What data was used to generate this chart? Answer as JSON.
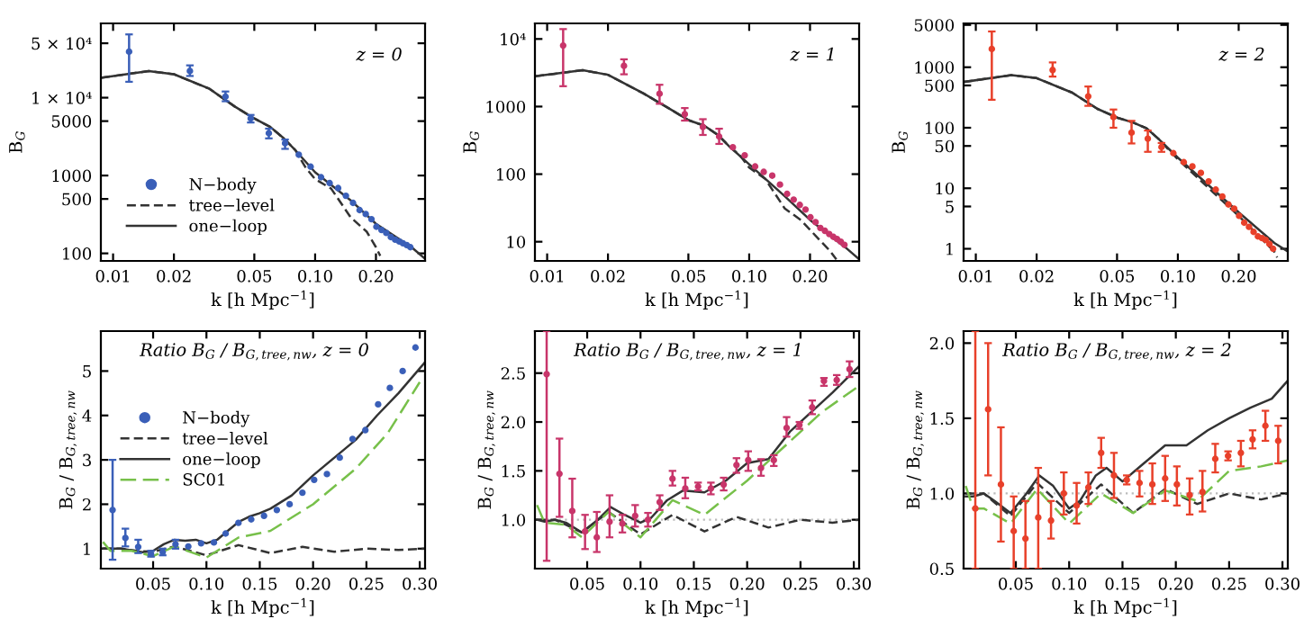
{
  "chart_data": [
    {
      "type": "line",
      "xlabel": "k [h Mpc$^{−1}$]",
      "ylabel": "B$_{G}$",
      "log": "xy",
      "xlim": [
        0.0087,
        0.35
      ],
      "ylim": [
        80,
        90000
      ],
      "xticks": [
        0.01,
        0.02,
        0.05,
        {
          "value": 0.1,
          "label": "0.10"
        },
        {
          "value": 0.2,
          "label": "0.20"
        }
      ],
      "yticks": [
        100,
        500,
        1000,
        5000,
        {
          "value": 10000,
          "label": "1 × 10⁴"
        },
        {
          "value": 50000,
          "label": "5 × 10⁴"
        }
      ],
      "annotations": [
        "z = 0"
      ],
      "legend": "bottom left",
      "series": [
        {
          "name": "N−body",
          "type": "scatter",
          "marker": "circle",
          "color": "#3a5fb8",
          "x": [
            0.012,
            0.024,
            0.036,
            0.048,
            0.059,
            0.071,
            0.083,
            0.095,
            0.107,
            0.118,
            0.13,
            0.142,
            0.154,
            0.166,
            0.178,
            0.19,
            0.201,
            0.213,
            0.225,
            0.237,
            0.249,
            0.261,
            0.272,
            0.284,
            0.296
          ],
          "values": [
            39000,
            22000,
            10300,
            5400,
            3500,
            2600,
            1850,
            1300,
            950,
            800,
            690,
            550,
            445,
            360,
            320,
            275,
            220,
            200,
            183,
            162,
            150,
            142,
            135,
            128,
            120
          ],
          "errors": [
            [
              16000,
              65000
            ],
            [
              19000,
              26000
            ],
            [
              9000,
              12000
            ],
            [
              4800,
              6000
            ],
            [
              3000,
              4000
            ],
            [
              2200,
              2900
            ],
            null,
            null,
            null,
            null,
            null,
            null,
            null,
            null,
            null,
            null,
            null,
            null,
            null,
            null,
            null,
            null,
            null,
            null,
            null
          ]
        },
        {
          "name": "tree−level",
          "type": "line",
          "line_style": "dashed",
          "color": "#333333",
          "x": [
            0.0087,
            0.015,
            0.02,
            0.03,
            0.04,
            0.05,
            0.06,
            0.07,
            0.08,
            0.09,
            0.1,
            0.12,
            0.15,
            0.18,
            0.2,
            0.21
          ],
          "values": [
            18000,
            22000,
            20000,
            13000,
            7700,
            5400,
            4200,
            3000,
            2100,
            1250,
            900,
            680,
            290,
            190,
            120,
            93
          ]
        },
        {
          "name": "one−loop",
          "type": "line",
          "line_style": "solid",
          "color": "#333333",
          "x": [
            0.0087,
            0.015,
            0.02,
            0.03,
            0.04,
            0.05,
            0.06,
            0.07,
            0.08,
            0.1,
            0.15,
            0.2,
            0.3,
            0.35
          ],
          "values": [
            18000,
            22000,
            20000,
            13000,
            7700,
            5400,
            4200,
            3000,
            2100,
            1100,
            480,
            240,
            120,
            85
          ]
        }
      ]
    },
    {
      "type": "line",
      "xlabel": "k [h Mpc$^{−1}$]",
      "ylabel": "B$_{G}$",
      "log": "xy",
      "xlim": [
        0.0087,
        0.35
      ],
      "ylim": [
        5.2,
        17000
      ],
      "xticks": [
        0.01,
        0.02,
        0.05,
        {
          "value": 0.1,
          "label": "0.10"
        },
        {
          "value": 0.2,
          "label": "0.20"
        }
      ],
      "yticks": [
        10,
        100,
        1000,
        {
          "value": 10000,
          "label": "10⁴"
        }
      ],
      "annotations": [
        "z = 1"
      ],
      "series": [
        {
          "type": "scatter",
          "marker": "circle",
          "color": "#c8356a",
          "x": [
            0.012,
            0.024,
            0.036,
            0.048,
            0.059,
            0.071,
            0.083,
            0.095,
            0.107,
            0.118,
            0.13,
            0.142,
            0.154,
            0.166,
            0.178,
            0.19,
            0.201,
            0.213,
            0.225,
            0.237,
            0.249,
            0.261,
            0.272,
            0.284,
            0.296
          ],
          "values": [
            8000,
            4000,
            1550,
            770,
            500,
            360,
            250,
            190,
            130,
            108,
            95,
            70,
            51,
            42,
            35,
            30,
            23,
            19.5,
            16,
            14.5,
            13,
            11.8,
            11,
            10,
            9
          ],
          "errors": [
            [
              2000,
              14000
            ],
            [
              3000,
              5000
            ],
            [
              1100,
              2100
            ],
            [
              620,
              950
            ],
            [
              380,
              650
            ],
            [
              280,
              470
            ],
            null,
            null,
            null,
            null,
            null,
            null,
            null,
            null,
            null,
            null,
            null,
            null,
            null,
            null,
            null,
            null,
            null,
            null,
            null
          ]
        },
        {
          "type": "line",
          "line_style": "dashed",
          "color": "#333333",
          "x": [
            0.0087,
            0.015,
            0.02,
            0.03,
            0.04,
            0.05,
            0.06,
            0.07,
            0.08,
            0.09,
            0.1,
            0.12,
            0.15,
            0.18,
            0.2,
            0.25,
            0.27
          ],
          "values": [
            2800,
            3450,
            2950,
            1560,
            940,
            630,
            520,
            380,
            255,
            190,
            125,
            85,
            31,
            21,
            15,
            7.4,
            5.5
          ]
        },
        {
          "type": "line",
          "line_style": "solid",
          "color": "#333333",
          "x": [
            0.0087,
            0.015,
            0.02,
            0.03,
            0.04,
            0.05,
            0.06,
            0.07,
            0.08,
            0.1,
            0.15,
            0.2,
            0.3,
            0.35
          ],
          "values": [
            2800,
            3450,
            2950,
            1560,
            940,
            630,
            520,
            380,
            255,
            140,
            47,
            21,
            8.2,
            5.5
          ]
        }
      ]
    },
    {
      "type": "line",
      "xlabel": "k [h Mpc$^{−1}$]",
      "ylabel": "B$_{G}$",
      "log": "xy",
      "xlim": [
        0.0087,
        0.35
      ],
      "ylim": [
        0.63,
        5300
      ],
      "xticks": [
        0.01,
        0.02,
        0.05,
        {
          "value": 0.1,
          "label": "0.10"
        },
        {
          "value": 0.2,
          "label": "0.20"
        }
      ],
      "yticks": [
        1,
        5,
        10,
        50,
        100,
        500,
        1000,
        5000
      ],
      "annotations": [
        "z = 2"
      ],
      "series": [
        {
          "type": "scatter",
          "marker": "circle",
          "color": "#e8402a",
          "x": [
            0.012,
            0.024,
            0.036,
            0.048,
            0.059,
            0.071,
            0.083,
            0.095,
            0.107,
            0.118,
            0.13,
            0.142,
            0.154,
            0.166,
            0.178,
            0.19,
            0.201,
            0.213,
            0.225,
            0.237,
            0.249,
            0.261,
            0.272,
            0.284,
            0.296
          ],
          "values": [
            2000,
            900,
            330,
            150,
            83,
            66,
            48,
            38,
            27,
            23,
            18,
            13,
            9.5,
            7.3,
            5.4,
            4.6,
            3.5,
            2.7,
            2.3,
            1.9,
            1.6,
            1.5,
            1.4,
            1.2,
            1.0
          ],
          "errors": [
            [
              290,
              3900
            ],
            [
              700,
              1200
            ],
            [
              230,
              480
            ],
            [
              100,
              200
            ],
            [
              55,
              130
            ],
            [
              40,
              90
            ],
            [
              40,
              56
            ],
            null,
            null,
            null,
            null,
            null,
            null,
            null,
            null,
            null,
            null,
            null,
            null,
            null,
            null,
            null,
            null,
            null,
            null
          ]
        },
        {
          "type": "line",
          "line_style": "dashed",
          "color": "#333333",
          "x": [
            0.0087,
            0.015,
            0.02,
            0.03,
            0.04,
            0.05,
            0.06,
            0.07,
            0.08,
            0.1,
            0.15,
            0.2,
            0.3,
            0.31
          ],
          "values": [
            570,
            740,
            660,
            380,
            205,
            147,
            122,
            98,
            66,
            30,
            8.5,
            3.5,
            0.9,
            0.72
          ]
        },
        {
          "type": "line",
          "line_style": "solid",
          "color": "#333333",
          "x": [
            0.0087,
            0.015,
            0.02,
            0.03,
            0.04,
            0.05,
            0.06,
            0.07,
            0.08,
            0.1,
            0.15,
            0.2,
            0.3,
            0.35
          ],
          "values": [
            570,
            740,
            660,
            380,
            205,
            147,
            122,
            98,
            66,
            32,
            9.5,
            4,
            1.25,
            0.9
          ]
        }
      ]
    },
    {
      "type": "line",
      "xlabel": "k [h Mpc$^{−1}$]",
      "ylabel": "B$_{G}$ / B$_{G,tree,nw}$",
      "xlim": [
        0.001,
        0.305
      ],
      "ylim": [
        0.55,
        5.9
      ],
      "xticks": [
        0.05,
        {
          "value": 0.1,
          "label": "0.10"
        },
        0.15,
        {
          "value": 0.2,
          "label": "0.20"
        },
        0.25,
        {
          "value": 0.3,
          "label": "0.30"
        }
      ],
      "yticks": [
        1,
        2,
        3,
        4,
        5
      ],
      "annotations": [
        "Ratio B$_{G}$ / B$_{G,tree,nw}$, z = 0"
      ],
      "legend": "left",
      "series": [
        {
          "name": "N−body",
          "type": "scatter",
          "marker": "circle",
          "color": "#3a5fb8",
          "x": [
            0.012,
            0.024,
            0.036,
            0.048,
            0.059,
            0.071,
            0.083,
            0.095,
            0.107,
            0.118,
            0.13,
            0.142,
            0.154,
            0.166,
            0.178,
            0.19,
            0.201,
            0.213,
            0.225,
            0.237,
            0.249,
            0.261,
            0.272,
            0.284,
            0.296
          ],
          "values": [
            1.87,
            1.24,
            1.04,
            0.88,
            0.92,
            1.1,
            1.05,
            1.12,
            1.14,
            1.34,
            1.58,
            1.66,
            1.74,
            1.87,
            2.0,
            2.26,
            2.55,
            2.68,
            3.05,
            3.47,
            3.67,
            4.25,
            4.62,
            5.0,
            5.53
          ],
          "errors": [
            [
              0.75,
              3.0
            ],
            [
              1.05,
              1.45
            ],
            [
              0.9,
              1.2
            ],
            [
              0.82,
              0.95
            ],
            [
              0.85,
              1.0
            ],
            [
              1.0,
              1.2
            ],
            null,
            null,
            null,
            null,
            null,
            null,
            null,
            null,
            null,
            null,
            null,
            null,
            null,
            null,
            null,
            null,
            null,
            null,
            null
          ]
        },
        {
          "name": "tree−level",
          "type": "line",
          "line_style": "dashed",
          "color": "#333333",
          "x": [
            0.003,
            0.02,
            0.035,
            0.05,
            0.07,
            0.1,
            0.13,
            0.16,
            0.19,
            0.22,
            0.25,
            0.28,
            0.305
          ],
          "values": [
            1.0,
            1.0,
            0.95,
            0.93,
            1.05,
            0.85,
            1.08,
            0.9,
            1.04,
            0.93,
            1.0,
            0.97,
            1.0
          ]
        },
        {
          "name": "one−loop",
          "type": "line",
          "line_style": "solid",
          "color": "#333333",
          "x": [
            0.003,
            0.02,
            0.04,
            0.05,
            0.06,
            0.07,
            0.08,
            0.09,
            0.1,
            0.11,
            0.12,
            0.13,
            0.14,
            0.15,
            0.16,
            0.18,
            0.2,
            0.22,
            0.24,
            0.26,
            0.28,
            0.305
          ],
          "values": [
            1.0,
            1.0,
            0.92,
            0.95,
            1.1,
            1.2,
            1.18,
            1.2,
            1.12,
            1.2,
            1.4,
            1.6,
            1.72,
            1.8,
            1.9,
            2.2,
            2.65,
            3.05,
            3.45,
            4.0,
            4.5,
            5.2
          ]
        },
        {
          "name": "SC01",
          "type": "line",
          "line_style": "dashed",
          "color": "#77c04a",
          "x": [
            0.003,
            0.01,
            0.03,
            0.05,
            0.07,
            0.1,
            0.13,
            0.16,
            0.2,
            0.24,
            0.27,
            0.3
          ],
          "values": [
            1.15,
            0.95,
            0.95,
            0.83,
            1.05,
            0.8,
            1.25,
            1.4,
            2.0,
            2.8,
            3.6,
            4.75
          ]
        }
      ]
    },
    {
      "type": "line",
      "xlabel": "k [h Mpc$^{−1}$]",
      "ylabel": "B$_{G}$ / B$_{G,tree,nw}$",
      "xlim": [
        0.001,
        0.305
      ],
      "ylim": [
        0.5,
        2.93
      ],
      "xticks": [
        0.05,
        {
          "value": 0.1,
          "label": "0.10"
        },
        0.15,
        {
          "value": 0.2,
          "label": "0.20"
        },
        0.25,
        {
          "value": 0.3,
          "label": "0.30"
        }
      ],
      "yticks": [
        {
          "value": 1.0,
          "label": "1.0"
        },
        1.5,
        {
          "value": 2.0,
          "label": "2.0"
        },
        2.5
      ],
      "annotations": [
        "Ratio B$_{G}$ / B$_{G,tree,nw}$, z = 1"
      ],
      "ref_lines": [
        {
          "axis": "y",
          "value": 1,
          "color": "#bbbbbb",
          "line_style": "dotted"
        }
      ],
      "series": [
        {
          "type": "scatter",
          "marker": "circle",
          "color": "#c8356a",
          "x": [
            0.012,
            0.024,
            0.036,
            0.048,
            0.059,
            0.071,
            0.083,
            0.095,
            0.107,
            0.118,
            0.13,
            0.142,
            0.154,
            0.166,
            0.178,
            0.19,
            0.201,
            0.213,
            0.225,
            0.237,
            0.249,
            0.261,
            0.272,
            0.284,
            0.296
          ],
          "values": [
            2.49,
            1.47,
            1.09,
            0.88,
            0.82,
            0.98,
            0.96,
            1.04,
            1.0,
            1.18,
            1.42,
            1.32,
            1.34,
            1.32,
            1.36,
            1.56,
            1.61,
            1.53,
            1.61,
            1.94,
            1.97,
            2.15,
            2.42,
            2.43,
            2.54
          ],
          "errors": [
            [
              0.58,
              2.93
            ],
            [
              1.03,
              1.83
            ],
            [
              0.82,
              1.42
            ],
            [
              0.7,
              1.05
            ],
            [
              0.67,
              1.08
            ],
            [
              0.82,
              1.25
            ],
            [
              0.87,
              1.05
            ],
            [
              0.93,
              1.15
            ],
            [
              0.93,
              1.07
            ],
            [
              1.1,
              1.25
            ],
            [
              1.35,
              1.5
            ],
            [
              1.22,
              1.43
            ],
            [
              1.3,
              1.38
            ],
            [
              1.26,
              1.38
            ],
            [
              1.3,
              1.43
            ],
            [
              1.48,
              1.63
            ],
            [
              1.5,
              1.7
            ],
            [
              1.45,
              1.62
            ],
            [
              1.55,
              1.66
            ],
            [
              1.85,
              2.05
            ],
            [
              1.93,
              2.0
            ],
            [
              2.08,
              2.22
            ],
            [
              2.37,
              2.45
            ],
            [
              2.38,
              2.48
            ],
            [
              2.46,
              2.62
            ]
          ]
        },
        {
          "type": "line",
          "line_style": "dashed",
          "color": "#333333",
          "x": [
            0.003,
            0.02,
            0.045,
            0.07,
            0.1,
            0.13,
            0.16,
            0.19,
            0.22,
            0.25,
            0.28,
            0.305
          ],
          "values": [
            1.0,
            1.0,
            0.87,
            1.08,
            0.85,
            1.05,
            0.88,
            1.03,
            0.92,
            1.0,
            0.97,
            1.0
          ]
        },
        {
          "type": "line",
          "line_style": "solid",
          "color": "#333333",
          "x": [
            0.003,
            0.01,
            0.02,
            0.03,
            0.045,
            0.06,
            0.072,
            0.085,
            0.1,
            0.11,
            0.125,
            0.14,
            0.16,
            0.18,
            0.2,
            0.22,
            0.24,
            0.26,
            0.28,
            0.305
          ],
          "values": [
            1.0,
            0.98,
            1.0,
            0.97,
            0.87,
            1.0,
            1.13,
            1.05,
            0.97,
            1.02,
            1.2,
            1.3,
            1.28,
            1.4,
            1.58,
            1.62,
            1.9,
            2.1,
            2.3,
            2.57
          ]
        },
        {
          "type": "line",
          "line_style": "dashed",
          "color": "#77c04a",
          "x": [
            0.003,
            0.01,
            0.03,
            0.045,
            0.07,
            0.1,
            0.13,
            0.16,
            0.2,
            0.24,
            0.27,
            0.305
          ],
          "values": [
            1.15,
            0.97,
            0.95,
            0.82,
            1.08,
            0.82,
            1.2,
            1.05,
            1.4,
            1.8,
            2.1,
            2.37
          ]
        }
      ]
    },
    {
      "type": "line",
      "xlabel": "k [h Mpc$^{−1}$]",
      "ylabel": "B$_{G}$ / B$_{G,tree,nw}$",
      "xlim": [
        0.001,
        0.305
      ],
      "ylim": [
        0.5,
        2.08
      ],
      "xticks": [
        0.05,
        {
          "value": 0.1,
          "label": "0.10"
        },
        0.15,
        {
          "value": 0.2,
          "label": "0.20"
        },
        0.25,
        {
          "value": 0.3,
          "label": "0.30"
        }
      ],
      "yticks": [
        0.5,
        {
          "value": 1.0,
          "label": "1.0"
        },
        1.5,
        {
          "value": 2.0,
          "label": "2.0"
        }
      ],
      "annotations": [
        "Ratio B$_{G}$ / B$_{G,tree,nw}$, z = 2"
      ],
      "ref_lines": [
        {
          "axis": "y",
          "value": 1,
          "color": "#bbbbbb",
          "line_style": "dotted"
        }
      ],
      "series": [
        {
          "type": "scatter",
          "marker": "circle",
          "color": "#e8402a",
          "x": [
            0.012,
            0.024,
            0.036,
            0.048,
            0.059,
            0.071,
            0.083,
            0.095,
            0.107,
            0.118,
            0.13,
            0.142,
            0.154,
            0.166,
            0.178,
            0.19,
            0.201,
            0.213,
            0.225,
            0.237,
            0.249,
            0.261,
            0.272,
            0.284,
            0.296
          ],
          "values": [
            0.9,
            1.56,
            1.06,
            0.75,
            0.7,
            0.84,
            0.82,
            1.0,
            0.92,
            1.04,
            1.27,
            1.12,
            1.09,
            1.07,
            1.06,
            1.1,
            1.06,
            0.99,
            1.01,
            1.23,
            1.25,
            1.27,
            1.36,
            1.45,
            1.35
          ],
          "errors": [
            [
              0.5,
              2.08
            ],
            [
              1.12,
              2.0
            ],
            [
              0.68,
              1.44
            ],
            [
              0.5,
              0.98
            ],
            [
              0.5,
              0.95
            ],
            [
              0.5,
              1.17
            ],
            [
              0.7,
              0.95
            ],
            [
              0.86,
              1.14
            ],
            [
              0.8,
              1.07
            ],
            [
              0.93,
              1.14
            ],
            [
              1.17,
              1.37
            ],
            [
              0.97,
              1.27
            ],
            [
              1.06,
              1.12
            ],
            [
              0.98,
              1.15
            ],
            [
              0.93,
              1.2
            ],
            [
              0.95,
              1.25
            ],
            [
              0.92,
              1.18
            ],
            [
              0.86,
              1.1
            ],
            [
              0.88,
              1.15
            ],
            [
              1.14,
              1.33
            ],
            [
              1.22,
              1.28
            ],
            [
              1.18,
              1.35
            ],
            [
              1.3,
              1.42
            ],
            [
              1.35,
              1.55
            ],
            [
              1.2,
              1.45
            ]
          ]
        },
        {
          "type": "line",
          "line_style": "dashed",
          "color": "#333333",
          "x": [
            0.003,
            0.02,
            0.045,
            0.07,
            0.1,
            0.13,
            0.16,
            0.19,
            0.22,
            0.25,
            0.28,
            0.305
          ],
          "values": [
            1.0,
            1.0,
            0.85,
            1.07,
            0.87,
            1.06,
            0.87,
            1.03,
            0.93,
            1.0,
            0.96,
            1.0
          ]
        },
        {
          "type": "line",
          "line_style": "solid",
          "color": "#333333",
          "x": [
            0.003,
            0.01,
            0.02,
            0.03,
            0.045,
            0.06,
            0.072,
            0.085,
            0.1,
            0.11,
            0.125,
            0.135,
            0.15,
            0.17,
            0.19,
            0.21,
            0.23,
            0.25,
            0.27,
            0.29,
            0.305
          ],
          "values": [
            0.98,
            0.98,
            1.0,
            0.95,
            0.87,
            1.0,
            1.12,
            1.05,
            0.9,
            0.95,
            1.12,
            1.17,
            1.08,
            1.2,
            1.32,
            1.32,
            1.42,
            1.5,
            1.57,
            1.63,
            1.75
          ]
        },
        {
          "type": "line",
          "line_style": "dashed",
          "color": "#77c04a",
          "x": [
            0.003,
            0.01,
            0.02,
            0.045,
            0.07,
            0.1,
            0.13,
            0.16,
            0.19,
            0.22,
            0.25,
            0.28,
            0.305
          ],
          "values": [
            1.05,
            0.9,
            0.9,
            0.8,
            1.03,
            0.8,
            1.0,
            0.87,
            1.02,
            0.95,
            1.15,
            1.18,
            1.22
          ]
        }
      ]
    }
  ]
}
